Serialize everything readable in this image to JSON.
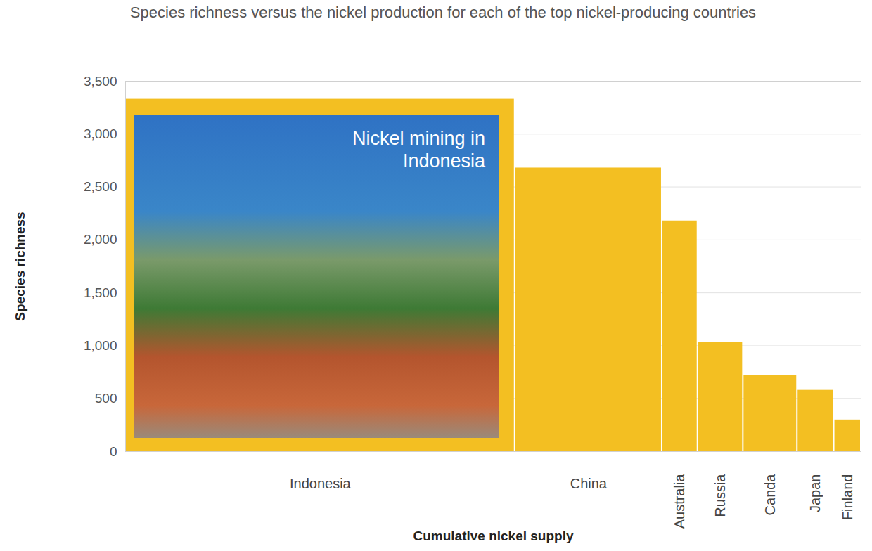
{
  "chart_data": {
    "type": "bar",
    "title": "Species richness versus the nickel production for each of the top nickel-producing countries",
    "xlabel": "Cumulative nickel supply",
    "ylabel": "Species richness",
    "annotation": "Nickel mining in Indonesia",
    "categories": [
      "Indonesia",
      "China",
      "Australia",
      "Russia",
      "Canda",
      "Japan",
      "Finland"
    ],
    "values": [
      3330,
      2680,
      2180,
      1030,
      720,
      580,
      300
    ],
    "supply": [
      1800,
      680,
      165,
      210,
      250,
      170,
      125
    ],
    "color": "#f3bf22",
    "xlim": [
      0,
      3400
    ],
    "ylim": [
      0,
      3500
    ],
    "yticks": [
      0,
      500,
      {
        "value": 1000,
        "label": "1,000"
      },
      {
        "value": 1500,
        "label": "1,500"
      },
      {
        "value": 2000,
        "label": "2,000"
      },
      {
        "value": 2500,
        "label": "2,500"
      },
      {
        "value": 3000,
        "label": "3,000"
      },
      {
        "value": 3500,
        "label": "3,500"
      }
    ],
    "grid": true,
    "tick_labels": "y"
  }
}
